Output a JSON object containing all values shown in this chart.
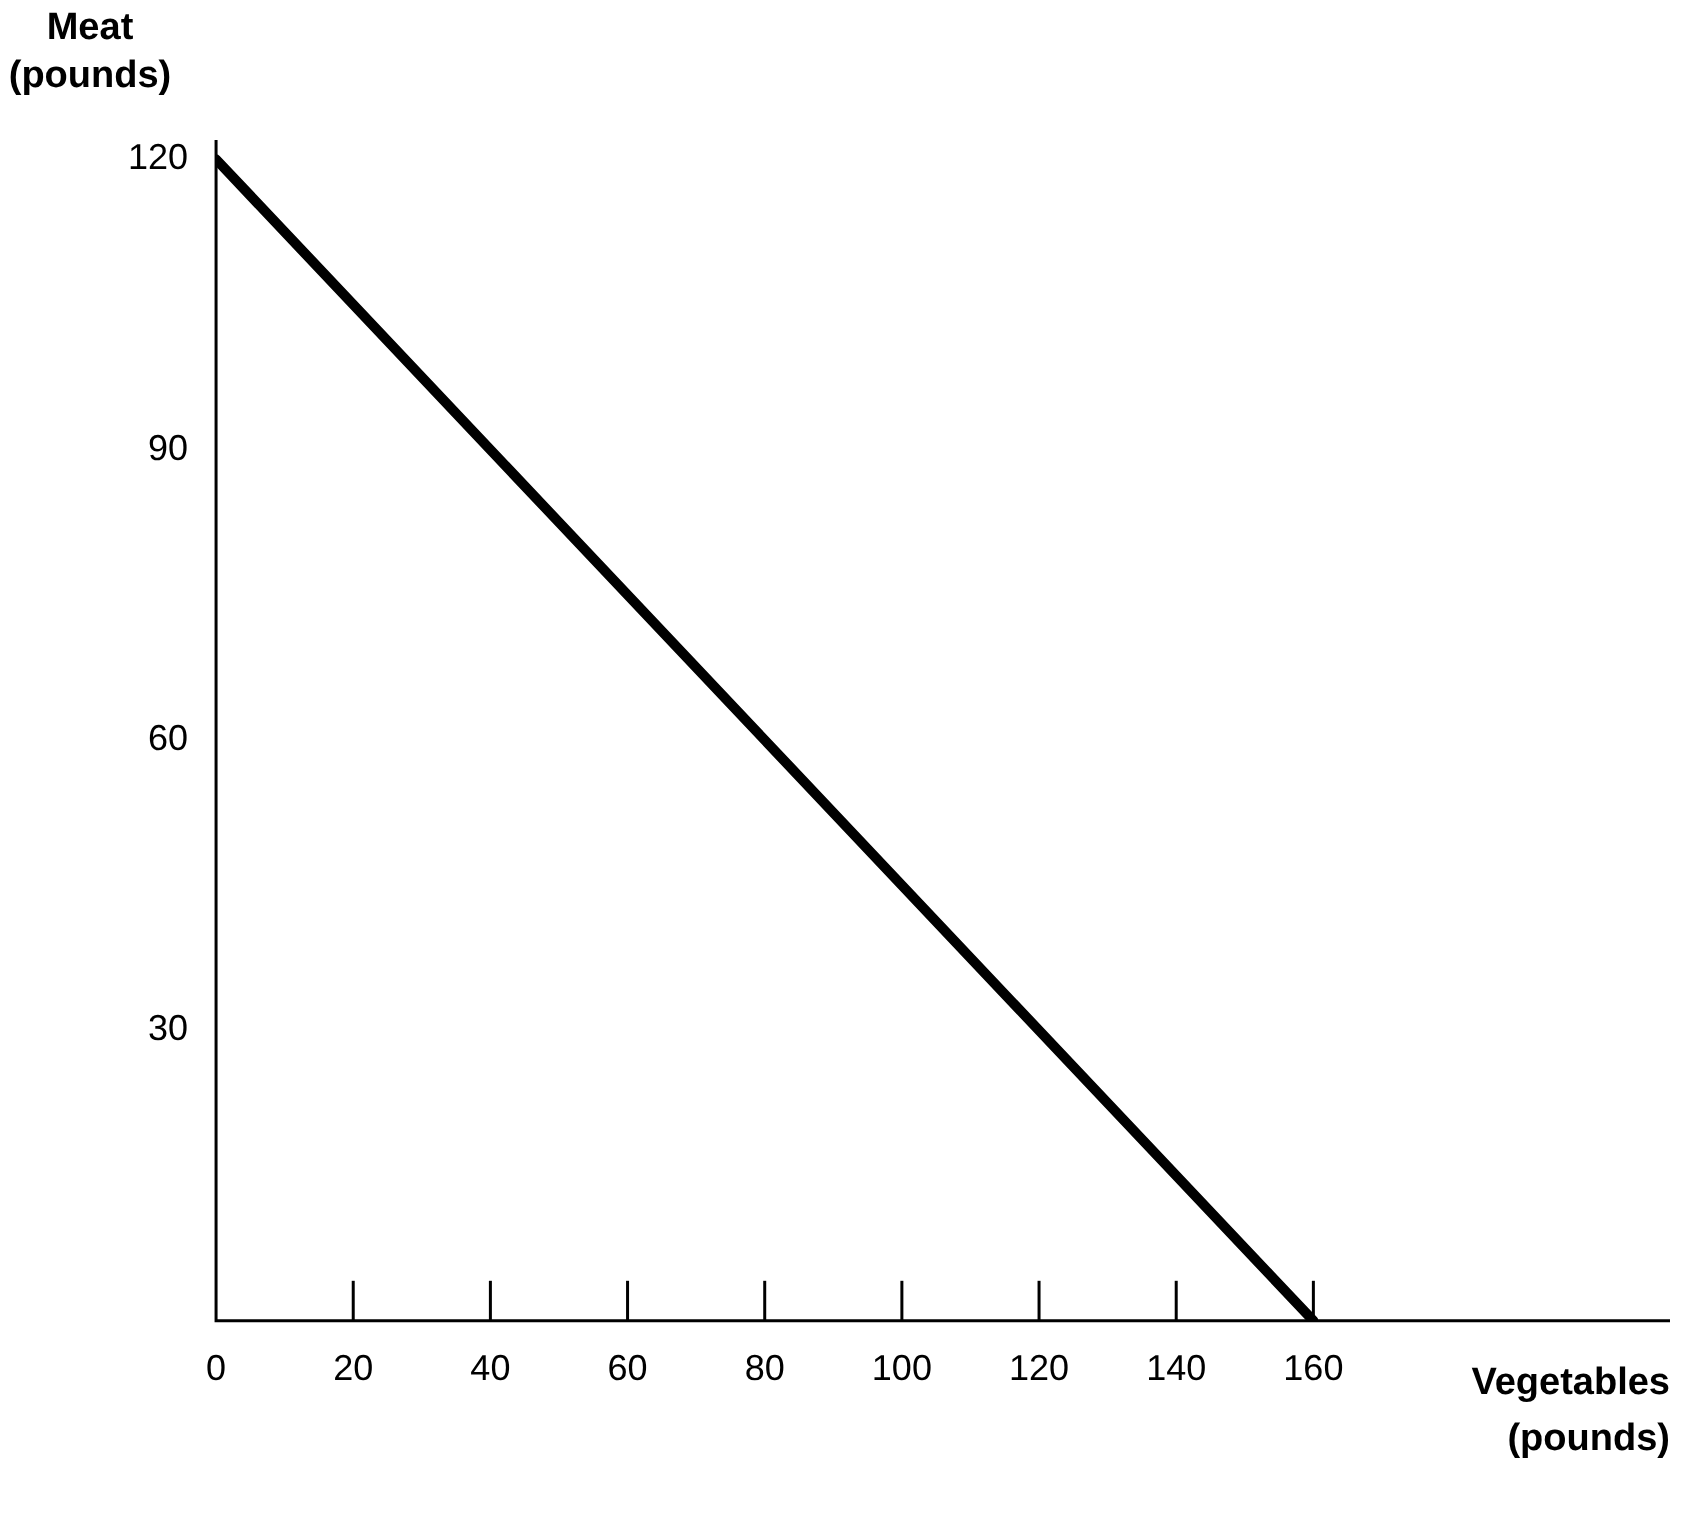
{
  "chart_data": {
    "type": "line",
    "xlabel": "Vegetables\n(pounds)",
    "ylabel": "Meat\n(pounds)",
    "x": [
      0,
      160
    ],
    "series": [
      {
        "color": "#000000",
        "values": [
          120,
          0
        ]
      }
    ],
    "xlim": [
      0,
      212
    ],
    "ylim": [
      0,
      122
    ],
    "xticks": [
      0,
      20,
      40,
      60,
      80,
      100,
      120,
      140,
      160
    ],
    "yticks": [
      30,
      60,
      90,
      120
    ],
    "grid": false,
    "legend": false,
    "marker": "none",
    "line_style": "solid"
  }
}
